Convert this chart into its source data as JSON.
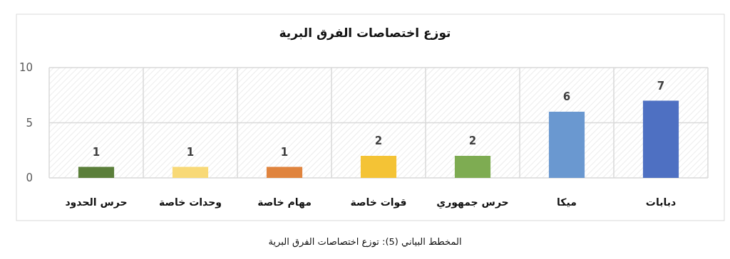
{
  "chart_data": {
    "type": "bar",
    "title": "توزع اختصاصات الفرق البرية",
    "categories": [
      "حرس الحدود",
      "وحدات خاصة",
      "مهام خاصة",
      "قوات خاصة",
      "حرس جمهوري",
      "ميكا",
      "دبابات"
    ],
    "values": [
      1,
      1,
      1,
      2,
      2,
      6,
      7
    ],
    "colors": [
      "#5b7f3a",
      "#f8d977",
      "#e0843e",
      "#f4c335",
      "#7eac52",
      "#6a98d0",
      "#4e70c2"
    ],
    "ylim": [
      0,
      10
    ],
    "yticks": [
      0,
      5,
      10
    ],
    "grid": true,
    "data_labels": true,
    "annotations": [
      "المخطط البياني (5): توزع اختصاصات الفرق البرية"
    ]
  }
}
